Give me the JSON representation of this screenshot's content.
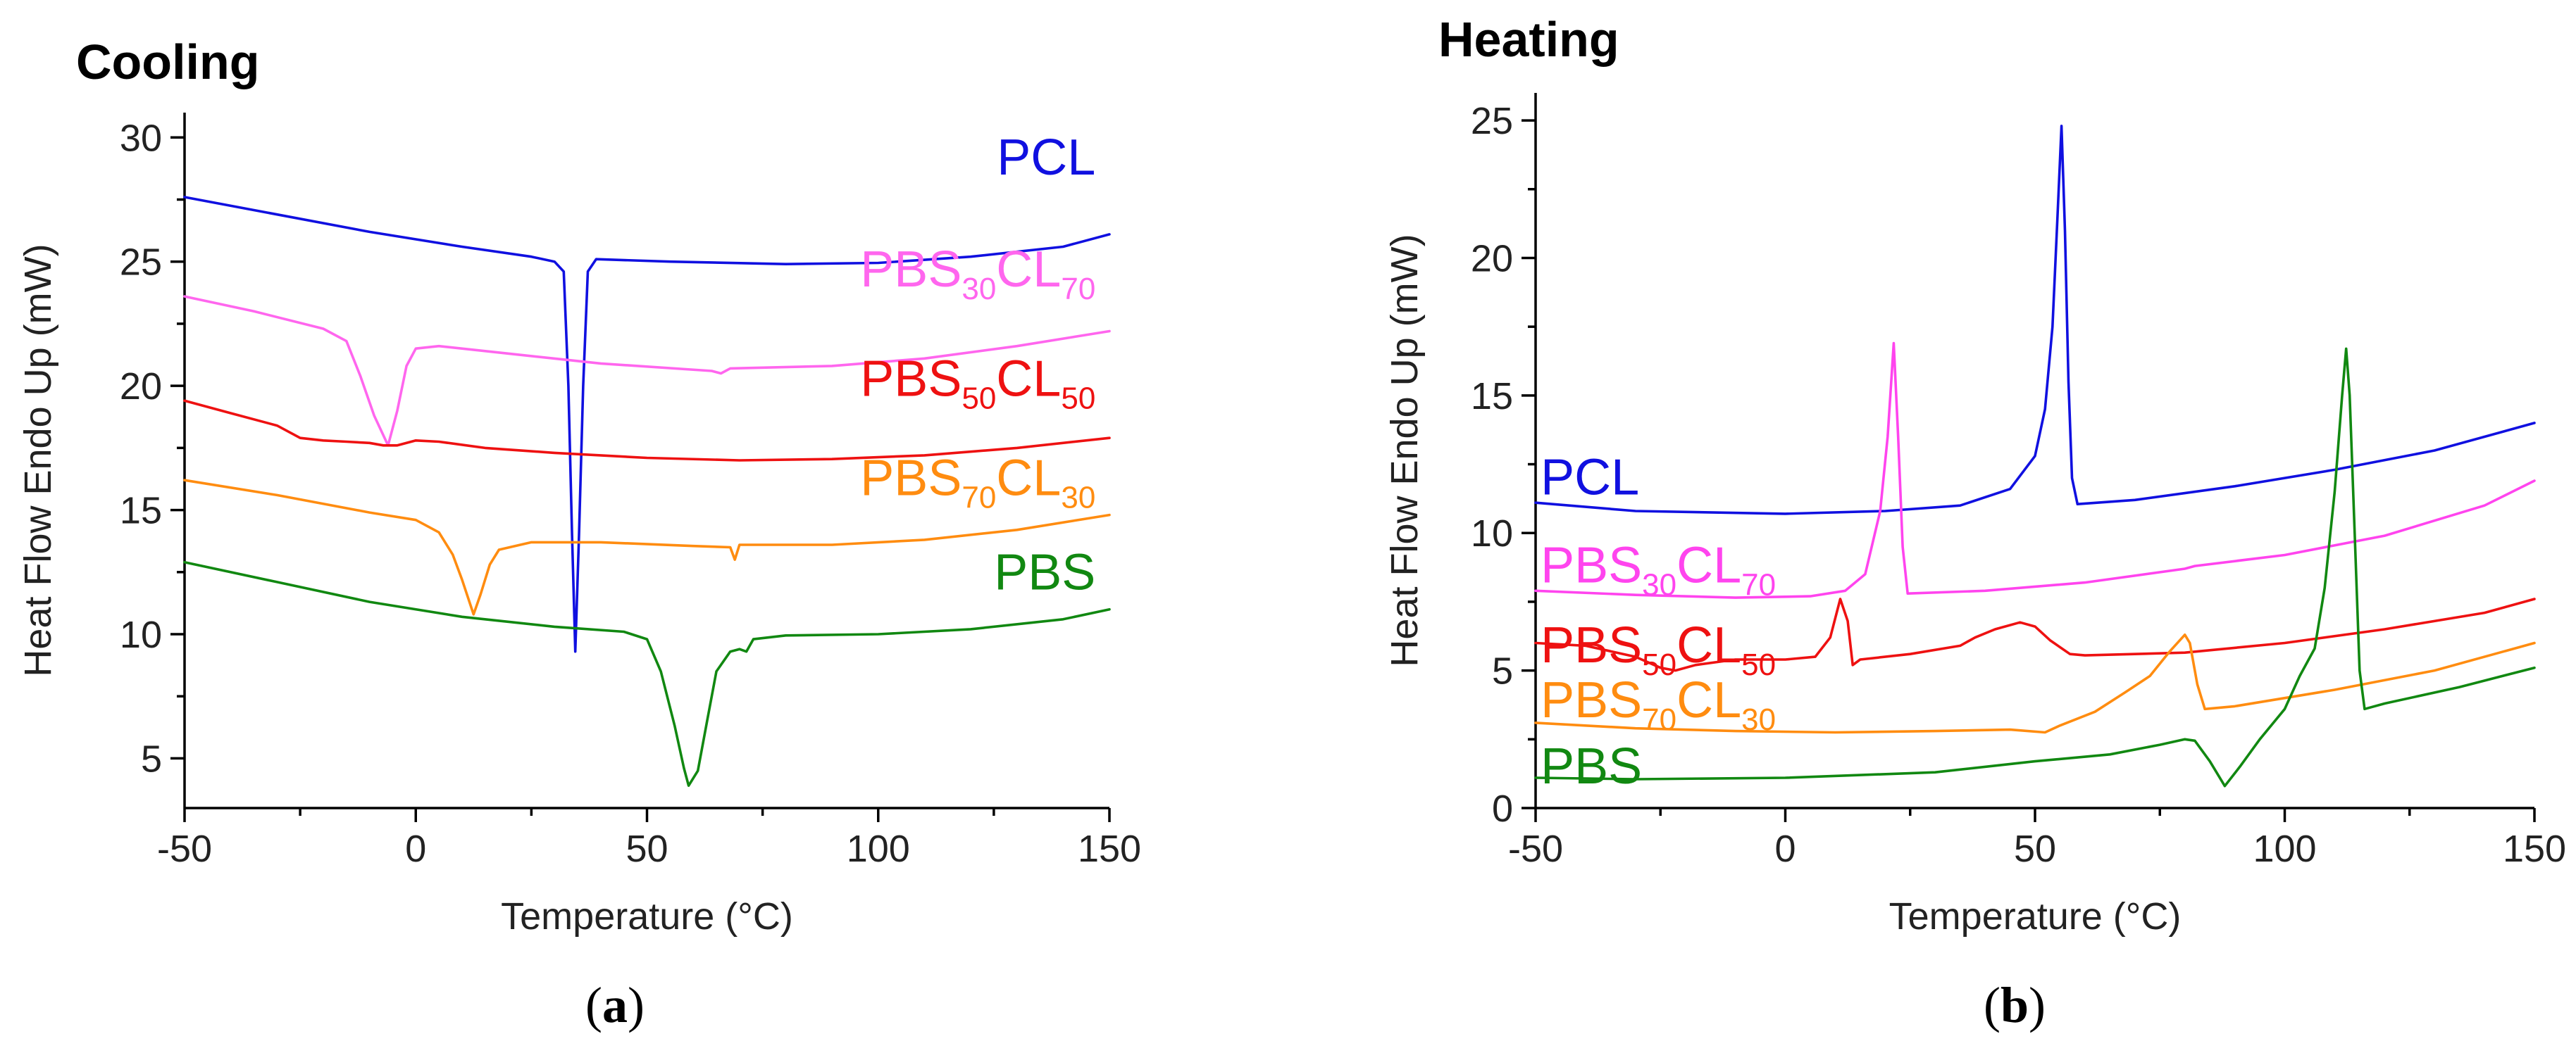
{
  "chart_data": [
    {
      "id": "a",
      "type": "line",
      "title": "Cooling",
      "caption_letter": "a",
      "xlabel": "Temperature (°C)",
      "ylabel": "Heat Flow Endo Up (mW)",
      "xlim": [
        -50,
        150
      ],
      "ylim": [
        3,
        31
      ],
      "xticks": [
        -50,
        0,
        50,
        100,
        150
      ],
      "yticks": [
        5,
        10,
        15,
        20,
        25,
        30
      ],
      "grid": false,
      "series": [
        {
          "name": "PCL",
          "label_base": "PCL",
          "label_sub1": "",
          "label_mid": "",
          "label_sub2": "",
          "color": "#1010e0",
          "label_at": [
            147,
            28.5
          ],
          "points": [
            [
              -50,
              27.6
            ],
            [
              -30,
              26.9
            ],
            [
              -10,
              26.2
            ],
            [
              10,
              25.6
            ],
            [
              25,
              25.2
            ],
            [
              30,
              25.0
            ],
            [
              32,
              24.6
            ],
            [
              33,
              20
            ],
            [
              33.8,
              14
            ],
            [
              34.5,
              9.3
            ],
            [
              35.3,
              14
            ],
            [
              36.2,
              20
            ],
            [
              37.2,
              24.6
            ],
            [
              39,
              25.1
            ],
            [
              55,
              25.0
            ],
            [
              80,
              24.9
            ],
            [
              100,
              24.95
            ],
            [
              120,
              25.2
            ],
            [
              140,
              25.6
            ],
            [
              150,
              26.1
            ]
          ]
        },
        {
          "name": "PBS30CL70",
          "label_base": "PBS",
          "label_sub1": "30",
          "label_mid": "CL",
          "label_sub2": "70",
          "color": "#ff66ee",
          "label_at": [
            147,
            24.0
          ],
          "points": [
            [
              -50,
              23.6
            ],
            [
              -35,
              23.0
            ],
            [
              -20,
              22.3
            ],
            [
              -15,
              21.8
            ],
            [
              -12,
              20.4
            ],
            [
              -9,
              18.8
            ],
            [
              -6,
              17.6
            ],
            [
              -4,
              19.0
            ],
            [
              -2,
              20.8
            ],
            [
              0,
              21.5
            ],
            [
              5,
              21.6
            ],
            [
              20,
              21.3
            ],
            [
              40,
              20.9
            ],
            [
              64,
              20.6
            ],
            [
              66,
              20.5
            ],
            [
              68,
              20.7
            ],
            [
              90,
              20.8
            ],
            [
              110,
              21.1
            ],
            [
              130,
              21.6
            ],
            [
              150,
              22.2
            ]
          ]
        },
        {
          "name": "PBS50CL50",
          "label_base": "PBS",
          "label_sub1": "50",
          "label_mid": "CL",
          "label_sub2": "50",
          "color": "#ee1111",
          "label_at": [
            147,
            19.6
          ],
          "points": [
            [
              -50,
              19.4
            ],
            [
              -40,
              18.9
            ],
            [
              -30,
              18.4
            ],
            [
              -25,
              17.9
            ],
            [
              -20,
              17.8
            ],
            [
              -15,
              17.75
            ],
            [
              -10,
              17.7
            ],
            [
              -7,
              17.6
            ],
            [
              -4,
              17.6
            ],
            [
              0,
              17.8
            ],
            [
              5,
              17.75
            ],
            [
              15,
              17.5
            ],
            [
              30,
              17.3
            ],
            [
              50,
              17.1
            ],
            [
              70,
              17.0
            ],
            [
              90,
              17.05
            ],
            [
              110,
              17.2
            ],
            [
              130,
              17.5
            ],
            [
              150,
              17.9
            ]
          ]
        },
        {
          "name": "PBS70CL30",
          "label_base": "PBS",
          "label_sub1": "70",
          "label_mid": "CL",
          "label_sub2": "30",
          "color": "#ff8c10",
          "label_at": [
            147,
            15.6
          ],
          "points": [
            [
              -50,
              16.2
            ],
            [
              -30,
              15.6
            ],
            [
              -10,
              14.9
            ],
            [
              0,
              14.6
            ],
            [
              5,
              14.1
            ],
            [
              8,
              13.2
            ],
            [
              10,
              12.2
            ],
            [
              12.5,
              10.8
            ],
            [
              14,
              11.6
            ],
            [
              16,
              12.8
            ],
            [
              18,
              13.4
            ],
            [
              25,
              13.7
            ],
            [
              40,
              13.7
            ],
            [
              60,
              13.55
            ],
            [
              68,
              13.5
            ],
            [
              69,
              13.0
            ],
            [
              70,
              13.6
            ],
            [
              90,
              13.6
            ],
            [
              110,
              13.8
            ],
            [
              130,
              14.2
            ],
            [
              150,
              14.8
            ]
          ]
        },
        {
          "name": "PBS",
          "label_base": "PBS",
          "label_sub1": "",
          "label_mid": "",
          "label_sub2": "",
          "color": "#118811",
          "label_at": [
            147,
            11.8
          ],
          "points": [
            [
              -50,
              12.9
            ],
            [
              -30,
              12.1
            ],
            [
              -10,
              11.3
            ],
            [
              10,
              10.7
            ],
            [
              30,
              10.3
            ],
            [
              45,
              10.1
            ],
            [
              50,
              9.8
            ],
            [
              53,
              8.5
            ],
            [
              56,
              6.3
            ],
            [
              58,
              4.6
            ],
            [
              59,
              3.9
            ],
            [
              61,
              4.5
            ],
            [
              63,
              6.5
            ],
            [
              65,
              8.5
            ],
            [
              68,
              9.3
            ],
            [
              70,
              9.4
            ],
            [
              71.5,
              9.3
            ],
            [
              73,
              9.8
            ],
            [
              80,
              9.95
            ],
            [
              100,
              10.0
            ],
            [
              120,
              10.2
            ],
            [
              140,
              10.6
            ],
            [
              150,
              11.0
            ]
          ]
        }
      ]
    },
    {
      "id": "b",
      "type": "line",
      "title": "Heating",
      "caption_letter": "b",
      "xlabel": "Temperature (°C)",
      "ylabel": "Heat Flow Endo Up (mW)",
      "xlim": [
        -50,
        150
      ],
      "ylim": [
        0,
        26
      ],
      "xticks": [
        -50,
        0,
        50,
        100,
        150
      ],
      "yticks": [
        0,
        5,
        10,
        15,
        20,
        25
      ],
      "grid": false,
      "series": [
        {
          "name": "PCL",
          "label_base": "PCL",
          "label_sub1": "",
          "label_mid": "",
          "label_sub2": "",
          "color": "#1010e0",
          "label_at": [
            -49,
            11.4
          ],
          "points": [
            [
              -50,
              11.1
            ],
            [
              -30,
              10.8
            ],
            [
              0,
              10.7
            ],
            [
              20,
              10.8
            ],
            [
              35,
              11.0
            ],
            [
              45,
              11.6
            ],
            [
              50,
              12.8
            ],
            [
              52,
              14.5
            ],
            [
              53.5,
              17.5
            ],
            [
              54.5,
              21.5
            ],
            [
              55.3,
              24.8
            ],
            [
              56,
              21.0
            ],
            [
              56.7,
              15.5
            ],
            [
              57.4,
              12.0
            ],
            [
              58.5,
              11.05
            ],
            [
              70,
              11.2
            ],
            [
              90,
              11.7
            ],
            [
              110,
              12.3
            ],
            [
              130,
              13.0
            ],
            [
              150,
              14.0
            ]
          ]
        },
        {
          "name": "PBS30CL70",
          "label_base": "PBS",
          "label_sub1": "30",
          "label_mid": "CL",
          "label_sub2": "70",
          "color": "#ff44ee",
          "label_at": [
            -49,
            8.2
          ],
          "points": [
            [
              -50,
              7.9
            ],
            [
              -30,
              7.75
            ],
            [
              -10,
              7.65
            ],
            [
              5,
              7.7
            ],
            [
              12,
              7.9
            ],
            [
              16,
              8.5
            ],
            [
              19,
              10.8
            ],
            [
              20.5,
              13.5
            ],
            [
              21.7,
              16.9
            ],
            [
              22.6,
              13.5
            ],
            [
              23.5,
              9.5
            ],
            [
              24.5,
              7.8
            ],
            [
              40,
              7.9
            ],
            [
              60,
              8.2
            ],
            [
              80,
              8.7
            ],
            [
              82,
              8.8
            ],
            [
              100,
              9.2
            ],
            [
              120,
              9.9
            ],
            [
              140,
              11.0
            ],
            [
              150,
              11.9
            ]
          ]
        },
        {
          "name": "PBS50CL50",
          "label_base": "PBS",
          "label_sub1": "50",
          "label_mid": "CL",
          "label_sub2": "50",
          "color": "#ee1111",
          "label_at": [
            -49,
            5.3
          ],
          "points": [
            [
              -50,
              6.0
            ],
            [
              -40,
              5.9
            ],
            [
              -30,
              5.5
            ],
            [
              -25,
              5.1
            ],
            [
              -22,
              5.0
            ],
            [
              -18,
              5.2
            ],
            [
              -10,
              5.4
            ],
            [
              0,
              5.4
            ],
            [
              6,
              5.5
            ],
            [
              9,
              6.2
            ],
            [
              11,
              7.6
            ],
            [
              12.5,
              6.8
            ],
            [
              13.5,
              5.2
            ],
            [
              15,
              5.4
            ],
            [
              25,
              5.6
            ],
            [
              35,
              5.9
            ],
            [
              38,
              6.2
            ],
            [
              42,
              6.5
            ],
            [
              47,
              6.75
            ],
            [
              50,
              6.6
            ],
            [
              53,
              6.1
            ],
            [
              57,
              5.6
            ],
            [
              60,
              5.55
            ],
            [
              80,
              5.65
            ],
            [
              100,
              6.0
            ],
            [
              120,
              6.5
            ],
            [
              140,
              7.1
            ],
            [
              150,
              7.6
            ]
          ]
        },
        {
          "name": "PBS70CL30",
          "label_base": "PBS",
          "label_sub1": "70",
          "label_mid": "CL",
          "label_sub2": "30",
          "color": "#ff8c10",
          "label_at": [
            -49,
            3.3
          ],
          "points": [
            [
              -50,
              3.1
            ],
            [
              -30,
              2.9
            ],
            [
              -10,
              2.8
            ],
            [
              10,
              2.75
            ],
            [
              30,
              2.8
            ],
            [
              45,
              2.85
            ],
            [
              52,
              2.75
            ],
            [
              55,
              3.0
            ],
            [
              62,
              3.5
            ],
            [
              68,
              4.2
            ],
            [
              73,
              4.8
            ],
            [
              77,
              5.7
            ],
            [
              80,
              6.3
            ],
            [
              81,
              6.0
            ],
            [
              82.5,
              4.5
            ],
            [
              84,
              3.6
            ],
            [
              90,
              3.7
            ],
            [
              110,
              4.3
            ],
            [
              130,
              5.0
            ],
            [
              150,
              6.0
            ]
          ]
        },
        {
          "name": "PBS",
          "label_base": "PBS",
          "label_sub1": "",
          "label_mid": "",
          "label_sub2": "",
          "color": "#118811",
          "label_at": [
            -49,
            0.9
          ],
          "points": [
            [
              -50,
              1.1
            ],
            [
              -30,
              1.05
            ],
            [
              0,
              1.1
            ],
            [
              30,
              1.3
            ],
            [
              50,
              1.7
            ],
            [
              65,
              1.95
            ],
            [
              75,
              2.3
            ],
            [
              80,
              2.5
            ],
            [
              82,
              2.45
            ],
            [
              85,
              1.7
            ],
            [
              88,
              0.8
            ],
            [
              91,
              1.5
            ],
            [
              95,
              2.5
            ],
            [
              100,
              3.6
            ],
            [
              103,
              4.8
            ],
            [
              106,
              5.8
            ],
            [
              108,
              8.0
            ],
            [
              110,
              11.5
            ],
            [
              111.5,
              15.0
            ],
            [
              112.3,
              16.7
            ],
            [
              113,
              15.0
            ],
            [
              114,
              10.0
            ],
            [
              115,
              5.0
            ],
            [
              116,
              3.6
            ],
            [
              120,
              3.8
            ],
            [
              135,
              4.4
            ],
            [
              150,
              5.1
            ]
          ]
        }
      ]
    }
  ]
}
